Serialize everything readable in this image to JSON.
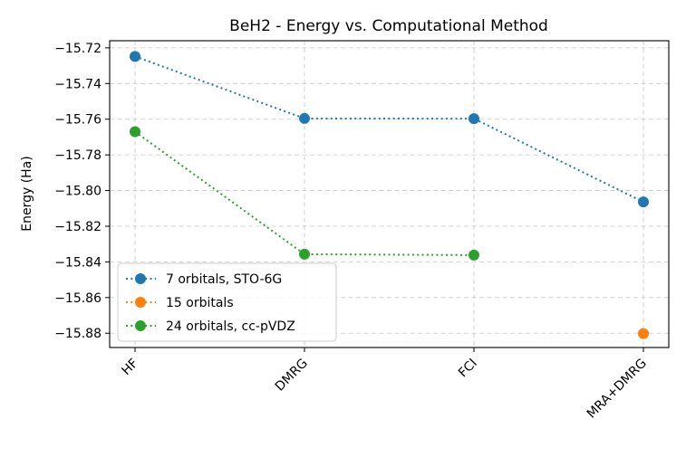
{
  "chart_data": {
    "type": "line",
    "title": "BeH2 - Energy vs. Computational Method",
    "xlabel": "",
    "ylabel": "Energy (Ha)",
    "categories": [
      "HF",
      "DMRG",
      "FCI",
      "MRA+DMRG"
    ],
    "ylim": [
      -15.888,
      -15.716
    ],
    "yticks": [
      -15.72,
      -15.74,
      -15.76,
      -15.78,
      -15.8,
      -15.82,
      -15.84,
      -15.86,
      -15.88
    ],
    "ytick_labels": [
      "−15.72",
      "−15.74",
      "−15.76",
      "−15.78",
      "−15.80",
      "−15.82",
      "−15.84",
      "−15.86",
      "−15.88"
    ],
    "grid": true,
    "legend_position": "lower-left",
    "series": [
      {
        "name": "7 orbitals, STO-6G",
        "color": "#1f77b4",
        "values": [
          -15.7248,
          -15.7596,
          -15.7597,
          -15.8064
        ]
      },
      {
        "name": "15 orbitals",
        "color": "#ff7f0e",
        "values": [
          null,
          null,
          null,
          -15.8802
        ]
      },
      {
        "name": "24 orbitals, cc-pVDZ",
        "color": "#2ca02c",
        "values": [
          -15.767,
          -15.8357,
          -15.8362,
          null
        ]
      }
    ]
  }
}
